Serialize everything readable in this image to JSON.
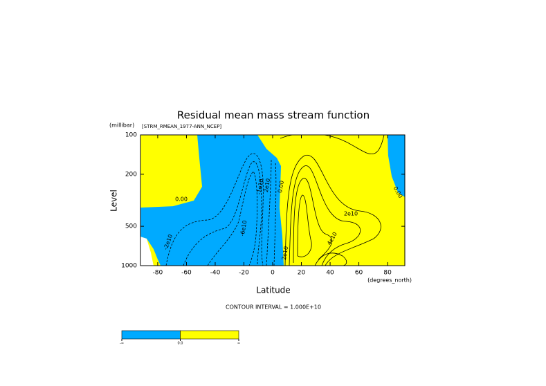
{
  "chart_data": {
    "type": "contour",
    "title": "Residual mean mass stream function",
    "subtitle": "[STRM_RMEAN_1977-ANN_NCEP]",
    "y_units": "(millibar)",
    "x_units": "(degrees_north)",
    "ylabel": "Level",
    "xlabel": "Latitude",
    "footnote": "CONTOUR INTERVAL = 1.000E+10",
    "xlim": [
      -92,
      92
    ],
    "xticks": [
      -80,
      -60,
      -40,
      -20,
      0,
      20,
      40,
      60,
      80
    ],
    "ylim": [
      100,
      1000
    ],
    "yticks": [
      100,
      200,
      500,
      1000
    ],
    "log_y": true,
    "y_reversed": true,
    "background": "#ffff00",
    "regions": [
      {
        "color": "#00aaff",
        "x": [
          -52.5,
          -10.6,
          -4.3,
          2.9,
          5.8,
          4.8,
          6.7,
          7.7,
          -78,
          -80,
          -82.9,
          -87.7,
          -92,
          -92,
          -69.4,
          -54.9,
          -49.1,
          -51
        ],
        "y": [
          100,
          100,
          128,
          150,
          173,
          360,
          585,
          1000,
          1000,
          896,
          746,
          622,
          600,
          360,
          351,
          318,
          249,
          153
        ]
      },
      {
        "color": "#ffffff",
        "x": [
          -92,
          -87.7,
          -84.8,
          -82.9,
          -92
        ],
        "y": [
          600,
          622,
          793,
          1000,
          1000
        ]
      },
      {
        "color": "#00aaff",
        "x": [
          80,
          92,
          92,
          87.2,
          82.9,
          80.4
        ],
        "y": [
          100,
          100,
          299,
          275,
          208,
          144
        ]
      }
    ],
    "annotations": [
      "0.00",
      "-2e10",
      "-6e10",
      "-1e10",
      "2e10",
      "0.00",
      "2e10",
      "4e10",
      "0.00",
      "2e10"
    ],
    "colorbar": {
      "colors": [
        "#00aaff",
        "#ffff00"
      ],
      "labels": [
        "-∞",
        "0.0",
        "∞"
      ]
    }
  }
}
